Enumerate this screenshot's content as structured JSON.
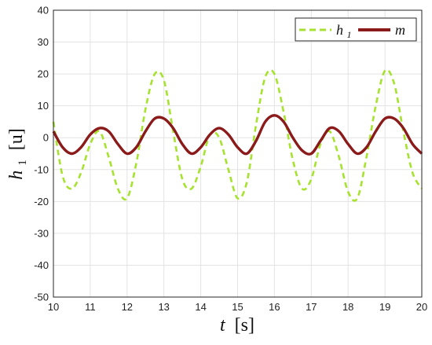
{
  "chart_data": {
    "type": "line",
    "xlabel_var": "t",
    "xlabel_unit": "[s]",
    "ylabel_var": "h",
    "ylabel_sub": "1",
    "ylabel_unit": "[u]",
    "xlim": [
      10,
      20
    ],
    "ylim": [
      -50,
      40
    ],
    "xticks": [
      10,
      11,
      12,
      13,
      14,
      15,
      16,
      17,
      18,
      19,
      20
    ],
    "yticks": [
      40,
      30,
      20,
      10,
      0,
      -10,
      -20,
      -30,
      -40,
      -50
    ],
    "grid": true,
    "legend_position": "top-right",
    "series": [
      {
        "name": "h",
        "name_sub": "1",
        "color": "#a6e22e",
        "style": "dashed",
        "x": [
          10.0,
          10.25,
          10.5,
          10.75,
          11.0,
          11.25,
          11.5,
          11.75,
          12.0,
          12.25,
          12.5,
          12.75,
          13.0,
          13.25,
          13.5,
          13.75,
          14.0,
          14.25,
          14.5,
          14.75,
          15.0,
          15.25,
          15.5,
          15.75,
          16.0,
          16.25,
          16.5,
          16.75,
          17.0,
          17.25,
          17.5,
          17.75,
          18.0,
          18.25,
          18.5,
          18.75,
          19.0,
          19.25,
          19.5,
          19.75,
          20.0
        ],
        "y": [
          5,
          -12,
          -16,
          -11,
          -2,
          2,
          -6,
          -16,
          -19,
          -8,
          9,
          20,
          18,
          2,
          -13,
          -16,
          -9,
          1,
          0,
          -10,
          -19,
          -14,
          4,
          19,
          20,
          8,
          -7,
          -16,
          -13,
          -2,
          2,
          -6,
          -17,
          -19,
          -6,
          10,
          21,
          17,
          2,
          -11,
          -16
        ]
      },
      {
        "name": "m",
        "color": "#8b1a1a",
        "style": "solid",
        "x": [
          10.0,
          10.25,
          10.5,
          10.75,
          11.0,
          11.25,
          11.5,
          11.75,
          12.0,
          12.25,
          12.5,
          12.75,
          13.0,
          13.25,
          13.5,
          13.75,
          14.0,
          14.25,
          14.5,
          14.75,
          15.0,
          15.25,
          15.5,
          15.75,
          16.0,
          16.25,
          16.5,
          16.75,
          17.0,
          17.25,
          17.5,
          17.75,
          18.0,
          18.25,
          18.5,
          18.75,
          19.0,
          19.25,
          19.5,
          19.75,
          20.0
        ],
        "y": [
          2,
          -3,
          -5,
          -3,
          1,
          3,
          2,
          -2,
          -5,
          -3,
          2,
          6,
          6,
          3,
          -2,
          -5,
          -3,
          1,
          3,
          1,
          -3,
          -5,
          -1,
          5,
          7,
          5,
          0,
          -4,
          -5,
          -1,
          3,
          2,
          -2,
          -5,
          -3,
          2,
          6,
          6,
          3,
          -2,
          -5
        ]
      }
    ]
  }
}
